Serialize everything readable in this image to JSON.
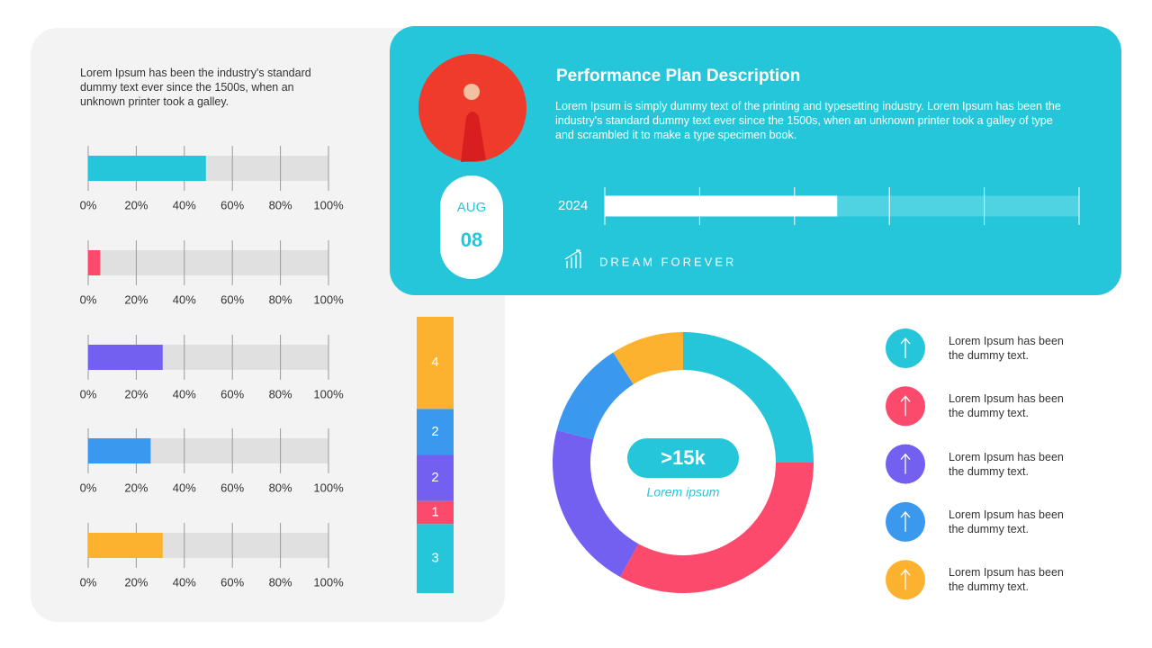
{
  "intro": "Lorem Ipsum has been the industry's standard dummy text ever since the 1500s, when an unknown printer took a galley.",
  "card": {
    "title": "Performance Plan Description",
    "description": "Lorem Ipsum is simply dummy text of the printing and typesetting industry. Lorem Ipsum has been the industry's standard dummy text ever since the 1500s, when an unknown printer took a galley of type and scrambled it to make a type specimen book.",
    "month": "AUG",
    "day": "08",
    "tagline": "DREAM FOREVER"
  },
  "chart_data": [
    {
      "type": "progress",
      "values": [
        49,
        5,
        31,
        26,
        31
      ],
      "colors": [
        "#26c6da",
        "#fc4a6d",
        "#7360f0",
        "#3a99ee",
        "#fdb22f"
      ],
      "track_color": "#e0e0e0",
      "xlim": [
        0,
        100
      ],
      "xticks": [
        {
          "value": 0,
          "label": "0%"
        },
        {
          "value": 20,
          "label": "20%"
        },
        {
          "value": 40,
          "label": "40%"
        },
        {
          "value": 60,
          "label": "60%"
        },
        {
          "value": 80,
          "label": "80%"
        },
        {
          "value": 100,
          "label": "100%"
        }
      ]
    },
    {
      "type": "stacked-column",
      "values": [
        3,
        1,
        2,
        2,
        4
      ],
      "colors": [
        "#26c6da",
        "#fc4a6d",
        "#7360f0",
        "#3a99ee",
        "#fdb22f"
      ]
    },
    {
      "type": "donut",
      "center_value": ">15k",
      "center_label": "Lorem ipsum",
      "categories": [
        "Lorem Ipsum has been the dummy text.",
        "Lorem Ipsum has been the dummy text.",
        "Lorem Ipsum has been the dummy text.",
        "Lorem Ipsum has been the dummy text.",
        "Lorem Ipsum has been the dummy text."
      ],
      "values": [
        25,
        33,
        21,
        12,
        9
      ],
      "colors": [
        "#26c6da",
        "#fc4a6d",
        "#7360f0",
        "#3a99ee",
        "#fdb22f"
      ]
    },
    {
      "type": "progress",
      "categories": [
        "2024"
      ],
      "values": [
        49
      ],
      "colors": [
        "#ffffff"
      ],
      "track_color": "#4fd3e3",
      "xlim": [
        0,
        100
      ],
      "xticks": [
        0,
        20,
        40,
        60,
        80,
        100
      ]
    }
  ]
}
